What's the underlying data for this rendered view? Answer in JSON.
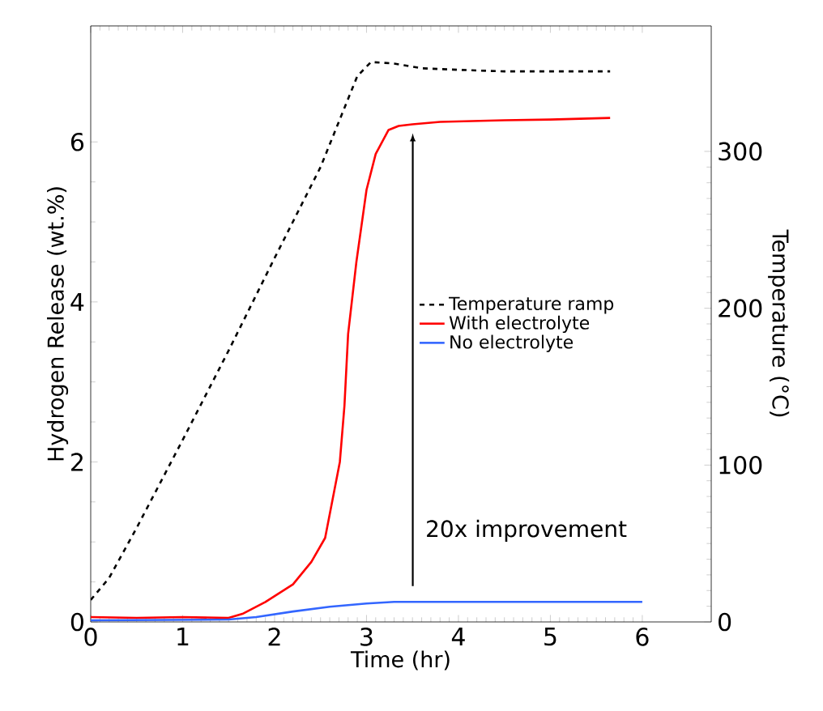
{
  "chart_data": {
    "type": "line",
    "xlabel": "Time (hr)",
    "ylabel": "Hydrogen Release (wt.%)",
    "y2label": "Temperature (°C)",
    "xlim": [
      0,
      6.75
    ],
    "xticks": [
      0,
      1,
      2,
      3,
      4,
      5,
      6
    ],
    "ylim": [
      0,
      7.45
    ],
    "yticks": [
      0,
      2,
      4,
      6
    ],
    "y2lim": [
      0,
      380
    ],
    "y2ticks": [
      0,
      100,
      200,
      300
    ],
    "legend": "right",
    "grid": false,
    "annotations": [
      "20x improvement"
    ],
    "series": [
      {
        "name": "Temperature ramp",
        "color": "#000000",
        "axis": "y2",
        "line_style": "dashed",
        "x": [
          0,
          0.2,
          0.5,
          1,
          1.5,
          2,
          2.5,
          2.9,
          3.05,
          3.3,
          3.6,
          4,
          4.5,
          5,
          5.65
        ],
        "values": [
          14,
          28,
          60,
          116,
          173,
          232,
          290,
          348,
          357,
          356,
          353,
          352,
          351,
          351,
          351
        ]
      },
      {
        "name": "With electrolyte",
        "color": "#ff0000",
        "line_style": "solid",
        "x": [
          0,
          0.5,
          1,
          1.5,
          1.65,
          1.9,
          2.2,
          2.4,
          2.55,
          2.71,
          2.76,
          2.8,
          2.89,
          3.0,
          3.1,
          3.24,
          3.35,
          3.5,
          3.8,
          4.5,
          5,
          5.65
        ],
        "values": [
          0.06,
          0.05,
          0.06,
          0.05,
          0.1,
          0.25,
          0.47,
          0.75,
          1.05,
          2.0,
          2.7,
          3.6,
          4.5,
          5.4,
          5.85,
          6.15,
          6.2,
          6.22,
          6.25,
          6.27,
          6.28,
          6.3
        ]
      },
      {
        "name": "No electrolyte",
        "color": "#3366ff",
        "line_style": "solid",
        "x": [
          0,
          1.5,
          1.8,
          2.2,
          2.6,
          3,
          3.3,
          4,
          5,
          6
        ],
        "values": [
          0.02,
          0.03,
          0.06,
          0.13,
          0.19,
          0.23,
          0.25,
          0.25,
          0.25,
          0.25
        ]
      }
    ]
  }
}
